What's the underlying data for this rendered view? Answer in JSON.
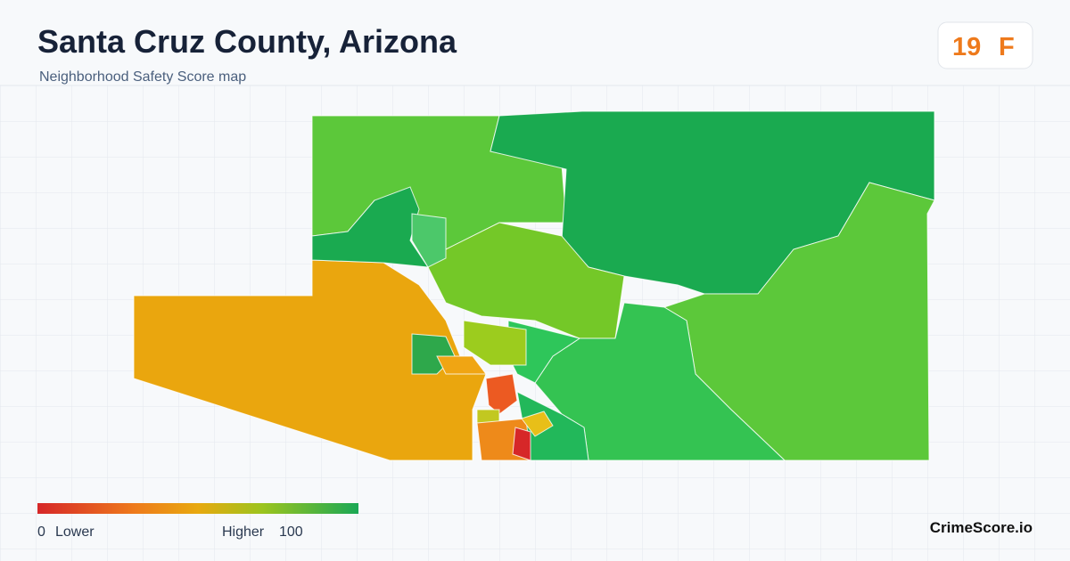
{
  "header": {
    "title": "Santa Cruz County, Arizona",
    "subtitle": "Neighborhood Safety Score map"
  },
  "score": {
    "value": "19",
    "grade": "F"
  },
  "legend": {
    "min": "0",
    "min_label": "Lower",
    "max_label": "Higher",
    "max": "100"
  },
  "brand": "CrimeScore.io"
}
